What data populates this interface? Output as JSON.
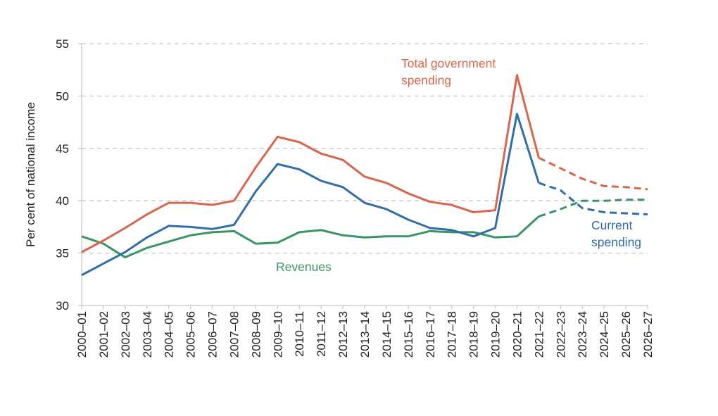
{
  "chart_data": {
    "type": "line",
    "title": "",
    "xlabel": "",
    "ylabel": "Per cent of national income",
    "ylim": [
      30,
      55
    ],
    "yticks": [
      "30",
      "35",
      "40",
      "45",
      "50",
      "55"
    ],
    "grid": true,
    "forecast_start": "2021–22",
    "categories": [
      "2000–01",
      "2001–02",
      "2002–03",
      "2003–04",
      "2004–05",
      "2005–06",
      "2006–07",
      "2007–08",
      "2008–09",
      "2009–10",
      "2010–11",
      "2011–12",
      "2012–13",
      "2013–14",
      "2014–15",
      "2015–16",
      "2016–17",
      "2017–18",
      "2018–19",
      "2019–20",
      "2020–21",
      "2021–22",
      "2022–23",
      "2023–24",
      "2024–25",
      "2025–26",
      "2026–27"
    ],
    "series": [
      {
        "name": "Total government spending",
        "label_lines": [
          "Total government",
          "spending"
        ],
        "color": "#d9664a",
        "values": [
          35.1,
          36.2,
          37.4,
          38.7,
          39.8,
          39.8,
          39.6,
          40.0,
          43.2,
          46.1,
          45.6,
          44.5,
          43.9,
          42.3,
          41.7,
          40.7,
          39.9,
          39.6,
          38.9,
          39.1,
          52.0,
          44.1,
          43.1,
          42.1,
          41.4,
          41.3,
          41.1
        ]
      },
      {
        "name": "Current spending",
        "label_lines": [
          "Current",
          "spending"
        ],
        "color": "#2f6ea8",
        "values": [
          32.9,
          34.0,
          35.1,
          36.5,
          37.6,
          37.5,
          37.3,
          37.7,
          40.9,
          43.5,
          43.0,
          41.9,
          41.3,
          39.8,
          39.2,
          38.2,
          37.4,
          37.2,
          36.6,
          37.4,
          48.3,
          41.7,
          41.0,
          39.3,
          38.9,
          38.8,
          38.7
        ]
      },
      {
        "name": "Revenues",
        "label_lines": [
          "Revenues"
        ],
        "color": "#3a9466",
        "values": [
          36.6,
          35.9,
          34.6,
          35.5,
          36.1,
          36.7,
          37.0,
          37.1,
          35.9,
          36.0,
          37.0,
          37.2,
          36.7,
          36.5,
          36.6,
          36.6,
          37.1,
          37.0,
          37.0,
          36.5,
          36.6,
          38.5,
          39.2,
          40.0,
          40.0,
          40.1,
          40.1
        ]
      }
    ]
  }
}
